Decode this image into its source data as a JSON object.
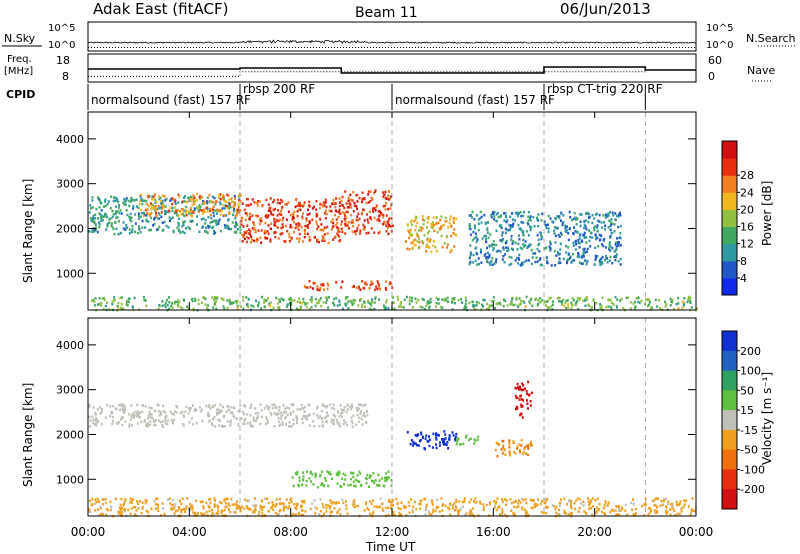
{
  "header": {
    "station": "Adak East (fitACF)",
    "beam": "Beam 11",
    "date": "06/Jun/2013"
  },
  "noise_panel": {
    "left_label": "N.Sky",
    "left_ticks": [
      "10^5",
      "10^0"
    ],
    "right_ticks": [
      "10^5",
      "10^0"
    ],
    "right_label": "N.Search"
  },
  "freq_panel": {
    "left_label_line1": "Freq.",
    "left_label_line2": "[MHz]",
    "left_ticks": [
      "18",
      "8"
    ],
    "right_ticks": [
      "60",
      "0"
    ],
    "right_label": "Nave",
    "freq_mhz": [
      [
        0,
        12.5
      ],
      [
        6,
        12.5
      ],
      [
        6,
        13.0
      ],
      [
        10,
        13.0
      ],
      [
        10,
        10.5
      ],
      [
        18,
        10.5
      ],
      [
        18,
        13.5
      ],
      [
        22,
        13.5
      ],
      [
        22,
        12.0
      ],
      [
        24,
        12.0
      ]
    ],
    "nave": [
      [
        0,
        12
      ],
      [
        6,
        12
      ],
      [
        6,
        22
      ],
      [
        22,
        22
      ],
      [
        22,
        26
      ],
      [
        24,
        26
      ]
    ]
  },
  "cpid_panel": {
    "label": "CPID",
    "segments": [
      {
        "text": "normalsound (fast) 157 RF",
        "start": 0,
        "row": "low"
      },
      {
        "text": "rbsp 200 RF",
        "start": 6,
        "row": "high"
      },
      {
        "text": "normalsound (fast) 157 RF",
        "start": 12,
        "row": "low"
      },
      {
        "text": "rbsp CT-trig 220 RF",
        "start": 18,
        "row": "high"
      }
    ],
    "dividers": [
      6,
      12,
      18,
      22
    ]
  },
  "power_panel": {
    "ylabel": "Slant Range [km]",
    "yticks": [
      "1000",
      "2000",
      "3000",
      "4000"
    ],
    "colorbar_label": "Power [dB]",
    "colorbar_ticks": [
      "4",
      "8",
      "12",
      "16",
      "20",
      "24",
      "28"
    ],
    "colorbar_colors": [
      "#1028e8",
      "#2058c8",
      "#3098a0",
      "#40a860",
      "#90c040",
      "#f0b820",
      "#f08020",
      "#e83010",
      "#d01010"
    ]
  },
  "velocity_panel": {
    "ylabel": "Slant Range [km]",
    "yticks": [
      "1000",
      "2000",
      "3000",
      "4000"
    ],
    "colorbar_label": "Velocity [m s⁻¹]",
    "colorbar_ticks": [
      "200",
      "100",
      "50",
      "15",
      "-15",
      "-50",
      "-100",
      "-200"
    ],
    "colorbar_colors": [
      "#1030d0",
      "#2060c0",
      "#30a060",
      "#60c040",
      "#c0c0b8",
      "#f0a020",
      "#f07010",
      "#e83010",
      "#d01010"
    ]
  },
  "time_axis": {
    "ticks": [
      "00:00",
      "04:00",
      "08:00",
      "12:00",
      "16:00",
      "20:00",
      "00:00"
    ],
    "label": "Time UT"
  },
  "chart_data": {
    "type": "heatmap",
    "title": "Adak East (fitACF)",
    "subtitle": "Beam 11",
    "date": "06/Jun/2013",
    "xlabel": "Time UT",
    "xlim_hours": [
      0,
      24
    ],
    "ylabel": "Slant Range [km]",
    "ylim": [
      180,
      4600
    ],
    "power_db_range": [
      0,
      32
    ],
    "velocity_range": [
      -250,
      250
    ],
    "power_regions": [
      {
        "t0": 0.0,
        "t1": 6.0,
        "r0": 1900,
        "r1": 2750,
        "power": 10
      },
      {
        "t0": 2.0,
        "t1": 6.0,
        "r0": 2300,
        "r1": 2800,
        "power": 22
      },
      {
        "t0": 6.0,
        "t1": 10.0,
        "r0": 1700,
        "r1": 2700,
        "power": 26
      },
      {
        "t0": 10.0,
        "t1": 12.0,
        "r0": 1900,
        "r1": 2900,
        "power": 27
      },
      {
        "t0": 8.5,
        "t1": 12.0,
        "r0": 650,
        "r1": 850,
        "power": 26
      },
      {
        "t0": 12.5,
        "t1": 14.5,
        "r0": 1500,
        "r1": 2300,
        "power": 20
      },
      {
        "t0": 15.0,
        "t1": 21.0,
        "r0": 1200,
        "r1": 2400,
        "power": 8
      },
      {
        "t0": 0.0,
        "t1": 24.0,
        "r0": 200,
        "r1": 500,
        "power": 14
      }
    ],
    "velocity_regions": [
      {
        "t0": 0.0,
        "t1": 11.0,
        "r0": 2200,
        "r1": 2700,
        "velocity": 0
      },
      {
        "t0": 8.0,
        "t1": 12.0,
        "r0": 850,
        "r1": 1200,
        "velocity": 45
      },
      {
        "t0": 12.5,
        "t1": 14.5,
        "r0": 1700,
        "r1": 2100,
        "velocity": 210
      },
      {
        "t0": 14.5,
        "t1": 15.5,
        "r0": 1800,
        "r1": 2000,
        "velocity": 40
      },
      {
        "t0": 16.8,
        "t1": 17.5,
        "r0": 2400,
        "r1": 3200,
        "velocity": -220
      },
      {
        "t0": 16.0,
        "t1": 17.5,
        "r0": 1500,
        "r1": 1900,
        "velocity": -80
      },
      {
        "t0": 0.0,
        "t1": 24.0,
        "r0": 200,
        "r1": 600,
        "velocity": -40
      }
    ]
  }
}
